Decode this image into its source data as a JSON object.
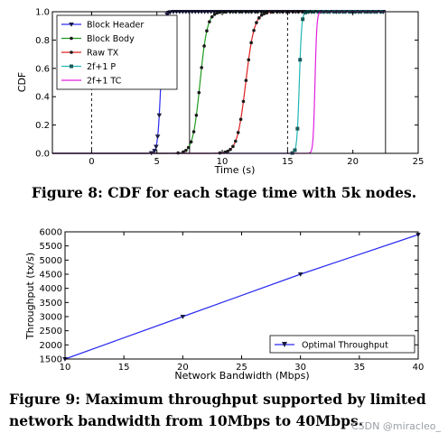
{
  "chart_data": [
    {
      "type": "line",
      "xlabel": "Time (s)",
      "ylabel": "CDF",
      "xlim": [
        -3,
        25
      ],
      "ylim": [
        0,
        1
      ],
      "xticks": [
        "0",
        "5",
        "10",
        "15",
        "20",
        "25"
      ],
      "yticks": [
        "0.0",
        "0.2",
        "0.4",
        "0.6",
        "0.8",
        "1.0"
      ],
      "vlines": [
        {
          "x": 0,
          "style": "dashed"
        },
        {
          "x": 7.5,
          "style": "solid"
        },
        {
          "x": 15,
          "style": "dashed"
        },
        {
          "x": 22.5,
          "style": "solid"
        }
      ],
      "legend_position": "top-left",
      "series": [
        {
          "name": "Block Header",
          "color": "#2a2af0",
          "marker": "triangle-down",
          "center": 5.3,
          "scale": 0.12
        },
        {
          "name": "Block Body",
          "color": "#1e9a1e",
          "marker": "circle",
          "center": 8.3,
          "scale": 0.28
        },
        {
          "name": "Raw TX",
          "color": "#e02020",
          "marker": "circle",
          "center": 11.8,
          "scale": 0.33
        },
        {
          "name": "2f+1 P",
          "color": "#22b5b5",
          "marker": "square",
          "center": 15.9,
          "scale": 0.09
        },
        {
          "name": "2f+1 TC",
          "color": "#e020e0",
          "marker": "none",
          "center": 17.1,
          "scale": 0.07
        }
      ],
      "caption": "Figure 8: CDF for each stage time with 5k nodes."
    },
    {
      "type": "line",
      "xlabel": "Network Bandwidth (Mbps)",
      "ylabel": "Throughput (tx/s)",
      "xlim": [
        10,
        40
      ],
      "ylim": [
        1500,
        6000
      ],
      "xticks": [
        "10",
        "15",
        "20",
        "25",
        "30",
        "35",
        "40"
      ],
      "yticks": [
        "1500",
        "2000",
        "2500",
        "3000",
        "3500",
        "4000",
        "4500",
        "5000",
        "5500",
        "6000"
      ],
      "legend_position": "bottom-right",
      "series": [
        {
          "name": "Optimal Throughput",
          "color": "#2a2af0",
          "marker": "triangle-down",
          "x": [
            10,
            20,
            30,
            40
          ],
          "y": [
            1500,
            3000,
            4500,
            5900
          ]
        }
      ],
      "caption_lines": [
        "Figure 9: Maximum throughput supported by limited",
        "network bandwidth from 10Mbps to 40Mbps."
      ]
    }
  ],
  "watermark": "CSDN @miracleo_"
}
